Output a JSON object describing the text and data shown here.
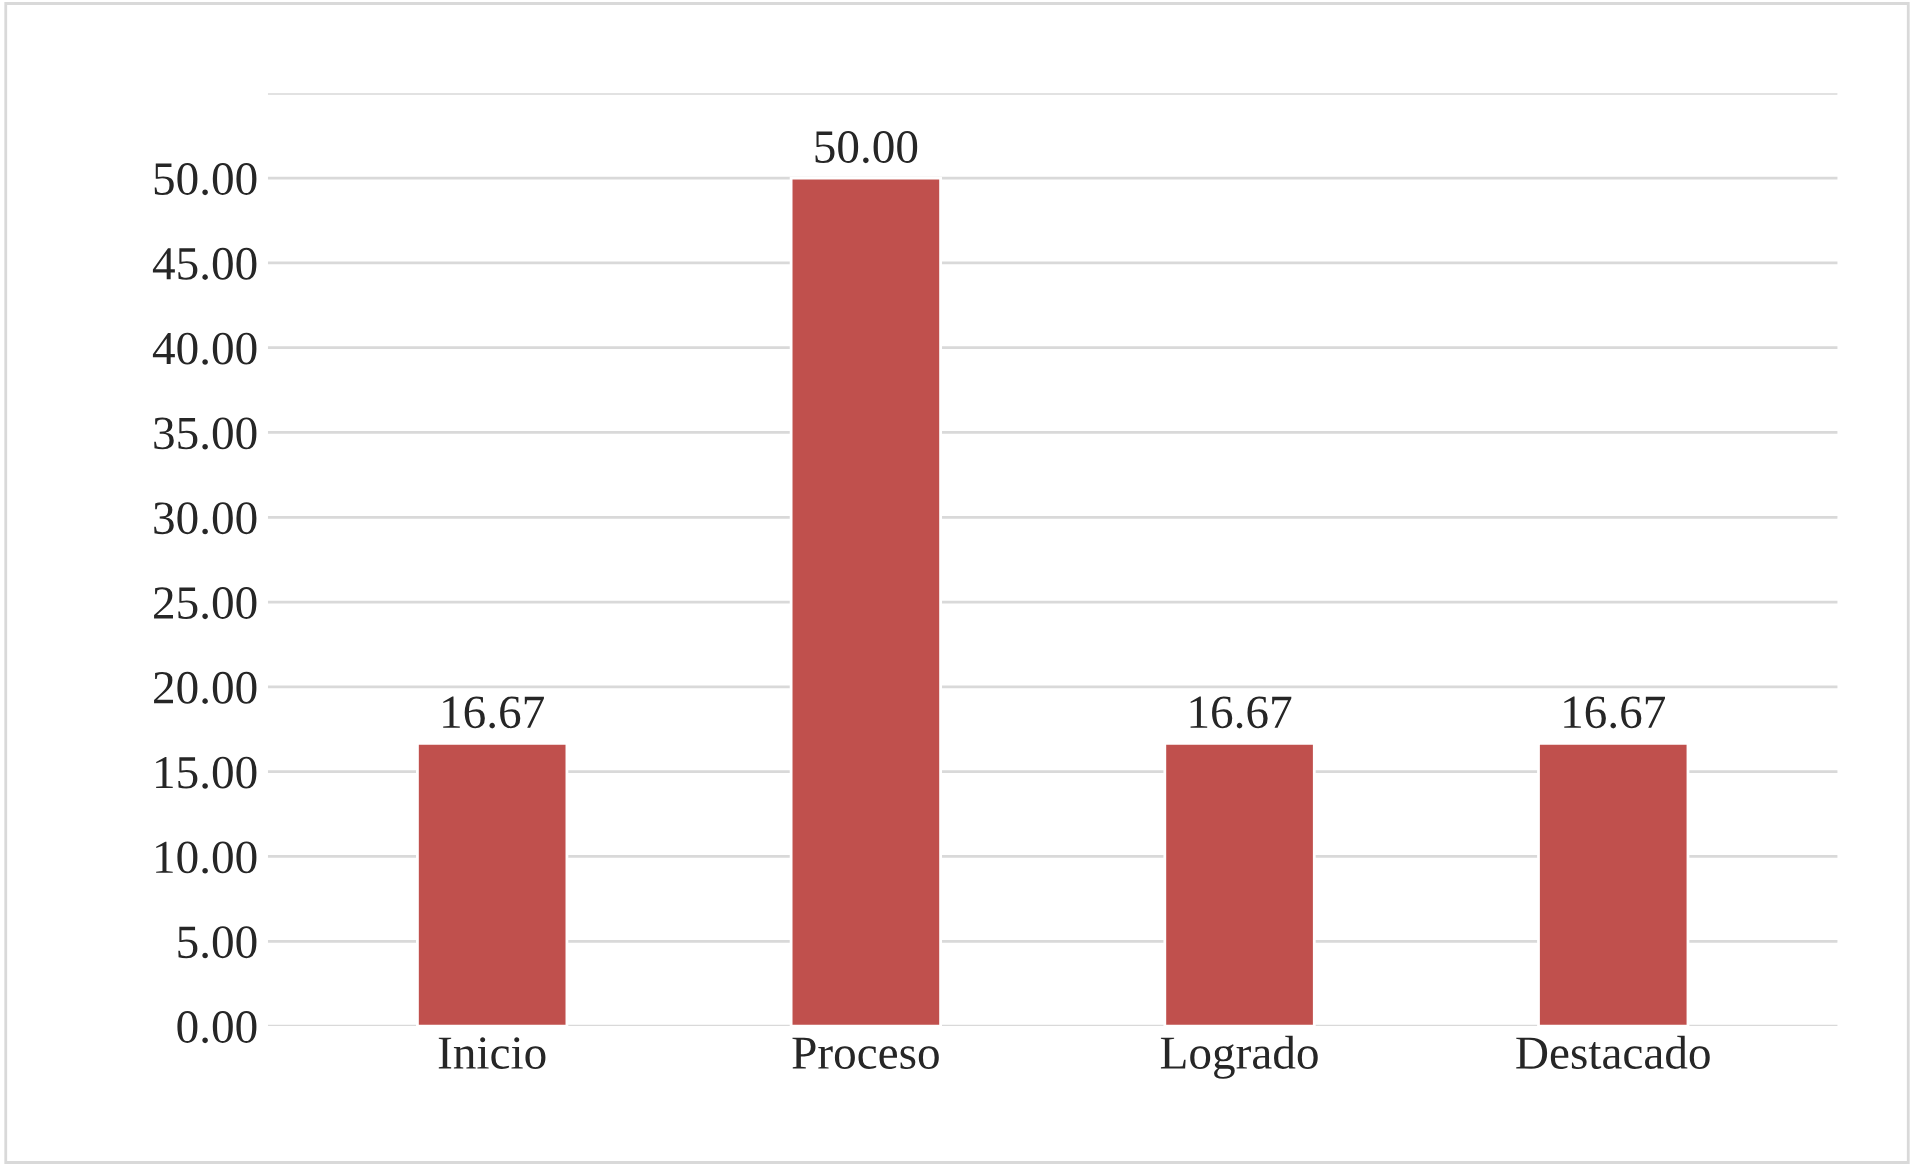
{
  "chart_data": {
    "type": "bar",
    "categories": [
      "Inicio",
      "Proceso",
      "Logrado",
      "Destacado"
    ],
    "values": [
      16.67,
      50.0,
      16.67,
      16.67
    ],
    "value_labels": [
      "16.67",
      "50.00",
      "16.67",
      "16.67"
    ],
    "color": "#c0504d",
    "ylim": [
      0,
      55
    ],
    "yticks": [
      {
        "value": 0,
        "label": "0.00"
      },
      {
        "value": 5,
        "label": "5.00"
      },
      {
        "value": 10,
        "label": "10.00"
      },
      {
        "value": 15,
        "label": "15.00"
      },
      {
        "value": 20,
        "label": "20.00"
      },
      {
        "value": 25,
        "label": "25.00"
      },
      {
        "value": 30,
        "label": "30.00"
      },
      {
        "value": 35,
        "label": "35.00"
      },
      {
        "value": 40,
        "label": "40.00"
      },
      {
        "value": 45,
        "label": "45.00"
      },
      {
        "value": 50,
        "label": "50.00"
      },
      {
        "value": 55,
        "label": null
      }
    ],
    "grid": "y"
  }
}
